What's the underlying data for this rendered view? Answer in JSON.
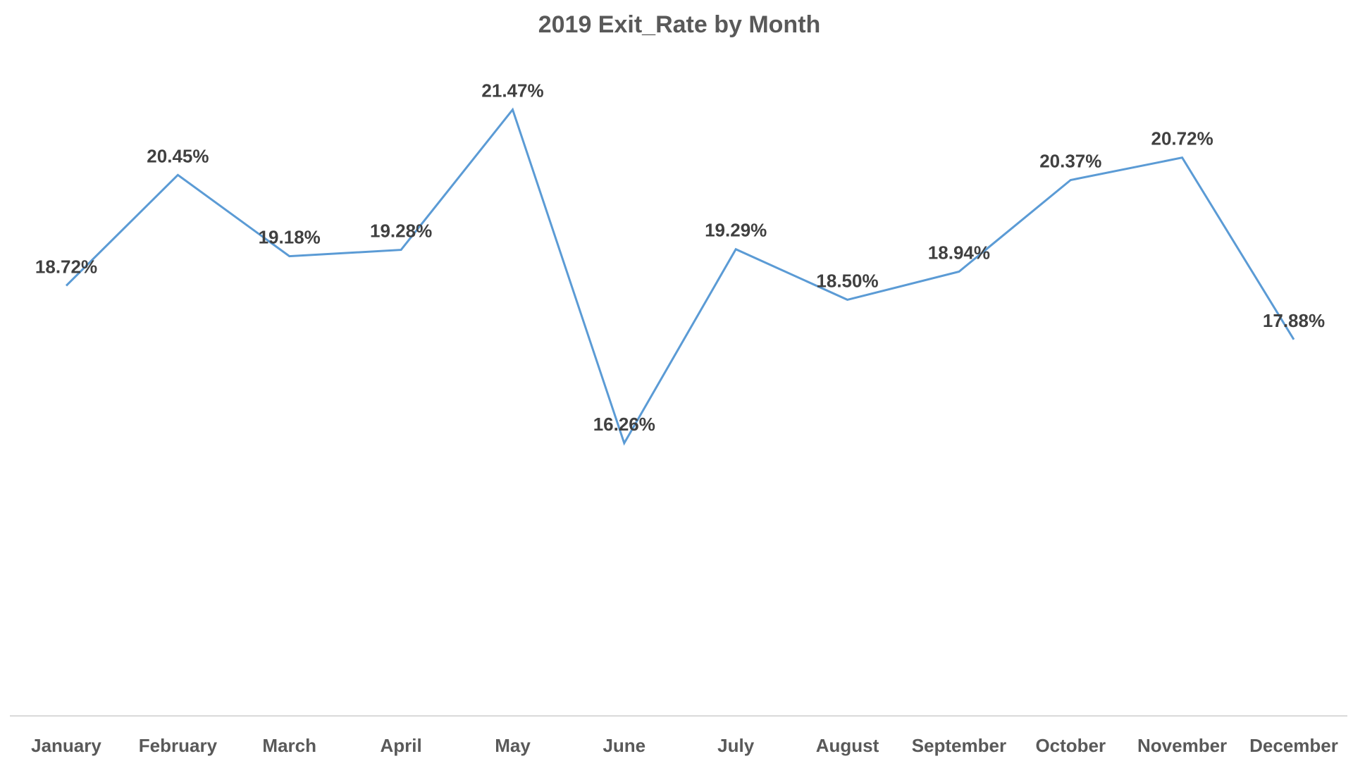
{
  "chart_data": {
    "type": "line",
    "title": "2019 Exit_Rate by Month",
    "xlabel": "",
    "ylabel": "",
    "categories": [
      "January",
      "February",
      "March",
      "April",
      "May",
      "June",
      "July",
      "August",
      "September",
      "October",
      "November",
      "December"
    ],
    "series": [
      {
        "values": [
          18.72,
          20.45,
          19.18,
          19.28,
          21.47,
          16.26,
          19.29,
          18.5,
          18.94,
          20.37,
          20.72,
          17.88
        ],
        "labels": [
          "18.72%",
          "20.45%",
          "19.18%",
          "19.28%",
          "21.47%",
          "16.26%",
          "19.29%",
          "18.50%",
          "18.94%",
          "20.37%",
          "20.72%",
          "17.88%"
        ],
        "color": "#5b9bd5"
      }
    ],
    "ylim": [
      12,
      22.5
    ],
    "grid": false,
    "legend": "none",
    "axis_color": "#d9d9d9"
  }
}
